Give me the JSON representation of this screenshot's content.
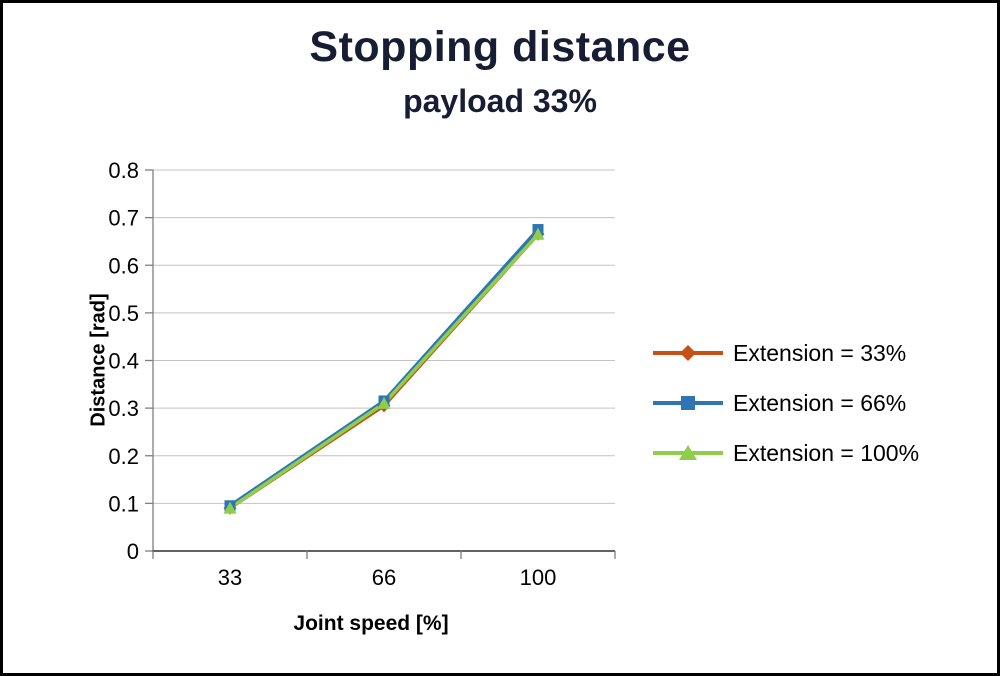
{
  "chart_data": {
    "type": "line",
    "title": "Stopping distance",
    "subtitle": "payload 33%",
    "xlabel": "Joint speed [%]",
    "ylabel": "Distance [rad]",
    "categories": [
      "33",
      "66",
      "100"
    ],
    "series": [
      {
        "name": "Extension = 33%",
        "values": [
          0.09,
          0.305,
          0.665
        ],
        "color": "#C55214",
        "marker": "diamond"
      },
      {
        "name": "Extension = 66%",
        "values": [
          0.095,
          0.315,
          0.675
        ],
        "color": "#2E75B6",
        "marker": "square"
      },
      {
        "name": "Extension = 100%",
        "values": [
          0.09,
          0.31,
          0.665
        ],
        "color": "#8FCE4B",
        "marker": "triangle"
      }
    ],
    "ylim": [
      0,
      0.8
    ],
    "ytick_step": 0.1,
    "ytick_labels": [
      "0",
      "0.1",
      "0.2",
      "0.3",
      "0.4",
      "0.5",
      "0.6",
      "0.7",
      "0.8"
    ],
    "grid": "horizontal",
    "legend_position": "right",
    "colors": {
      "title_text": "#171D33",
      "axis_text": "#000000",
      "gridline": "#C3C3C3",
      "axis_line": "#7F7F7F",
      "axis_line_bottom": "#4D4D4D",
      "background": "#FFFFFF"
    }
  }
}
